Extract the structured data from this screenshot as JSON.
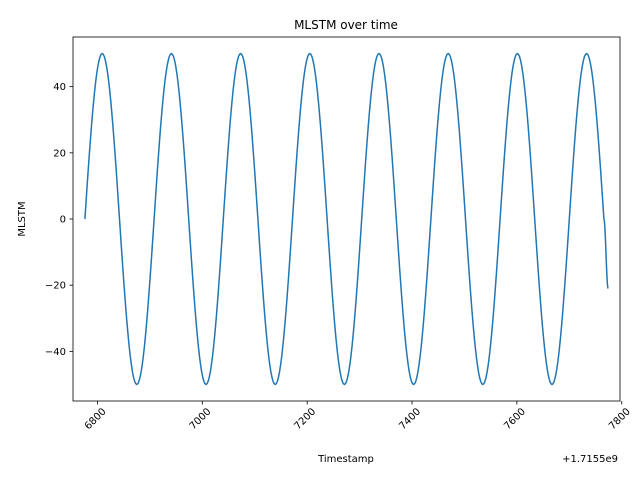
{
  "chart_data": {
    "type": "line",
    "title": "MLSTM over time",
    "xlabel": "Timestamp",
    "ylabel": "MLSTM",
    "x_offset_label": "+1.7155e9",
    "xlim": [
      6776,
      7774
    ],
    "ylim": [
      -55,
      55
    ],
    "x_ticks": [
      "6800",
      "7000",
      "7200",
      "7400",
      "7600",
      "7800"
    ],
    "y_ticks": [
      "−40",
      "−20",
      "0",
      "20",
      "40"
    ],
    "grid": false,
    "legend": "none",
    "line_color": "#1f77b4",
    "series": [
      {
        "x": [
          6776,
          6809,
          6842,
          6875,
          6908,
          6941,
          6974,
          7007,
          7040,
          7073,
          7106,
          7139,
          7172,
          7205,
          7238,
          7271,
          7304,
          7337,
          7370,
          7403,
          7436,
          7469,
          7502,
          7535,
          7568,
          7601,
          7634,
          7667,
          7700,
          7733,
          7766,
          7774
        ],
        "y": [
          0,
          50,
          0,
          -50,
          0,
          50,
          0,
          -50,
          0,
          50,
          0,
          -50,
          0,
          50,
          0,
          -50,
          0,
          50,
          0,
          -50,
          0,
          50,
          0,
          -50,
          0,
          50,
          0,
          -50,
          0,
          50,
          0,
          -21
        ]
      }
    ]
  }
}
